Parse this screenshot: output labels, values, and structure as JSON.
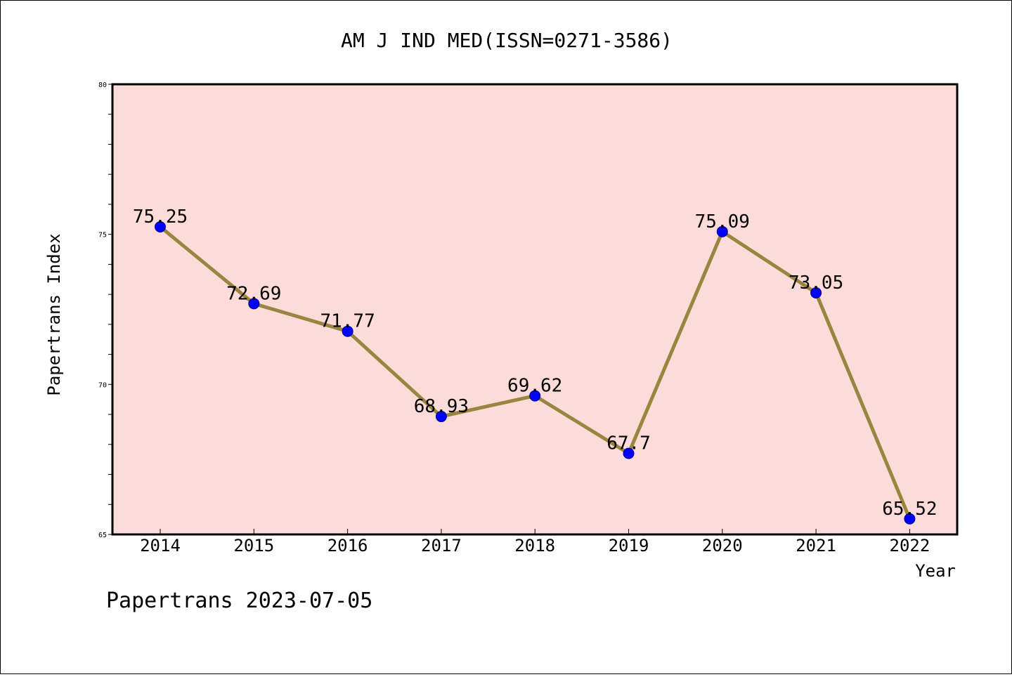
{
  "chart_data": {
    "type": "line",
    "title": "AM J IND MED(ISSN=0271-3586)",
    "xlabel": "Year",
    "ylabel": "Papertrans Index",
    "x": [
      "2014",
      "2015",
      "2016",
      "2017",
      "2018",
      "2019",
      "2020",
      "2021",
      "2022"
    ],
    "values": [
      75.25,
      72.69,
      71.77,
      68.93,
      69.62,
      67.7,
      75.09,
      73.05,
      65.52
    ],
    "value_labels": [
      "75.25",
      "72.69",
      "71.77",
      "68.93",
      "69.62",
      "67.7",
      "75.09",
      "73.05",
      "65.52"
    ],
    "ylim": [
      65,
      80
    ],
    "yticks": [
      "65",
      "70",
      "75",
      "80"
    ],
    "grid": false,
    "legend": "none",
    "colors": {
      "plot_background": "#fddbd8",
      "line": "#9a8540",
      "marker": "#0000ff"
    }
  },
  "footer": {
    "note": "Papertrans 2023-07-05"
  }
}
